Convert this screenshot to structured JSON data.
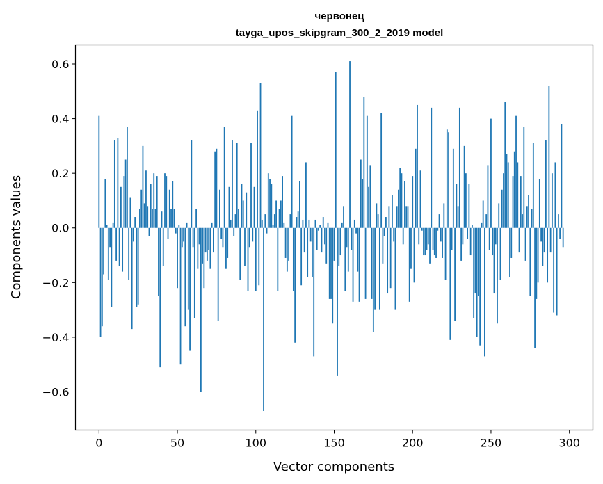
{
  "chart_data": {
    "type": "bar",
    "title": "червонец",
    "subtitle": "tayga_upos_skipgram_300_2_2019 model",
    "xlabel": "Vector components",
    "ylabel": "Components values",
    "xlim": [
      -15,
      315
    ],
    "ylim": [
      -0.74,
      0.67
    ],
    "xticks": [
      0,
      50,
      100,
      150,
      200,
      250,
      300
    ],
    "xtick_labels": [
      "0",
      "50",
      "100",
      "150",
      "200",
      "250",
      "300"
    ],
    "yticks": [
      -0.6,
      -0.4,
      -0.2,
      0.0,
      0.2,
      0.4,
      0.6
    ],
    "ytick_labels": [
      "−0.6",
      "−0.4",
      "−0.2",
      "0.0",
      "0.2",
      "0.4",
      "0.6"
    ],
    "grid": false,
    "bar_color": "#1f77b4",
    "x_start": 0,
    "values": [
      0.41,
      -0.4,
      -0.36,
      -0.17,
      0.18,
      0.01,
      -0.19,
      -0.07,
      -0.29,
      0.02,
      0.32,
      -0.12,
      0.33,
      -0.14,
      0.15,
      -0.16,
      0.19,
      0.25,
      0.37,
      -0.19,
      0.11,
      -0.37,
      -0.05,
      0.04,
      -0.29,
      -0.28,
      0.07,
      0.14,
      0.3,
      0.09,
      0.21,
      0.08,
      -0.03,
      0.16,
      0.07,
      0.2,
      0.07,
      0.19,
      -0.25,
      -0.51,
      0.06,
      -0.14,
      0.2,
      0.19,
      -0.04,
      0.14,
      0.07,
      0.17,
      0.07,
      -0.02,
      -0.22,
      0.01,
      -0.5,
      -0.07,
      -0.05,
      -0.36,
      0.02,
      -0.3,
      -0.45,
      0.32,
      -0.07,
      -0.33,
      0.07,
      -0.15,
      -0.06,
      -0.6,
      -0.13,
      -0.22,
      -0.09,
      -0.12,
      -0.08,
      -0.15,
      0.02,
      -0.09,
      0.28,
      0.29,
      -0.34,
      0.14,
      -0.04,
      -0.07,
      0.37,
      -0.15,
      -0.11,
      0.15,
      0.03,
      0.32,
      -0.03,
      0.05,
      0.31,
      0.07,
      -0.19,
      0.16,
      0.1,
      -0.14,
      0.13,
      -0.23,
      -0.07,
      0.31,
      -0.05,
      0.15,
      -0.23,
      0.43,
      -0.21,
      0.53,
      0.03,
      -0.67,
      0.05,
      -0.02,
      0.2,
      0.18,
      0.16,
      0.01,
      0.05,
      0.1,
      -0.23,
      0.07,
      0.1,
      0.19,
      0.02,
      -0.11,
      -0.16,
      -0.12,
      0.05,
      0.41,
      -0.23,
      -0.42,
      0.04,
      0.06,
      0.17,
      -0.21,
      0.03,
      -0.09,
      0.24,
      -0.18,
      0.03,
      -0.05,
      -0.18,
      -0.47,
      0.03,
      -0.08,
      -0.01,
      0.01,
      -0.09,
      0.04,
      -0.06,
      -0.13,
      0.02,
      -0.26,
      -0.26,
      -0.35,
      -0.12,
      0.57,
      -0.54,
      -0.14,
      -0.1,
      0.02,
      0.08,
      -0.23,
      -0.07,
      -0.16,
      0.61,
      -0.08,
      -0.27,
      0.03,
      -0.02,
      -0.16,
      -0.27,
      0.25,
      0.18,
      0.48,
      -0.26,
      0.41,
      0.15,
      0.23,
      -0.26,
      -0.38,
      -0.3,
      0.09,
      0.05,
      -0.3,
      0.42,
      -0.13,
      -0.03,
      0.04,
      -0.24,
      0.08,
      -0.22,
      0.12,
      -0.05,
      -0.3,
      0.08,
      0.14,
      0.22,
      0.2,
      -0.06,
      0.17,
      0.08,
      0.08,
      -0.27,
      -0.15,
      0.19,
      -0.2,
      0.29,
      0.45,
      -0.06,
      0.21,
      -0.01,
      -0.1,
      -0.1,
      -0.08,
      -0.06,
      -0.13,
      0.44,
      -0.08,
      -0.1,
      -0.11,
      -0.01,
      0.05,
      -0.05,
      -0.11,
      0.09,
      -0.19,
      0.36,
      0.35,
      -0.41,
      -0.08,
      0.29,
      -0.34,
      0.16,
      0.08,
      0.44,
      -0.12,
      -0.06,
      0.3,
      0.2,
      -0.04,
      0.16,
      -0.1,
      0.01,
      -0.33,
      -0.24,
      -0.4,
      -0.25,
      -0.43,
      0.02,
      0.1,
      -0.47,
      0.05,
      0.23,
      -0.08,
      0.4,
      -0.1,
      -0.24,
      -0.06,
      -0.35,
      0.09,
      -0.19,
      0.14,
      0.2,
      0.46,
      0.27,
      0.24,
      -0.18,
      -0.11,
      0.19,
      0.28,
      0.41,
      0.24,
      -0.09,
      0.19,
      0.05,
      0.37,
      -0.12,
      0.08,
      0.12,
      -0.25,
      0.07,
      0.31,
      -0.44,
      -0.26,
      -0.2,
      0.18,
      -0.05,
      -0.14,
      -0.09,
      0.32,
      -0.2,
      0.52,
      -0.09,
      0.2,
      -0.31,
      0.24,
      -0.32,
      0.05,
      -0.04,
      0.38,
      -0.07
    ]
  }
}
